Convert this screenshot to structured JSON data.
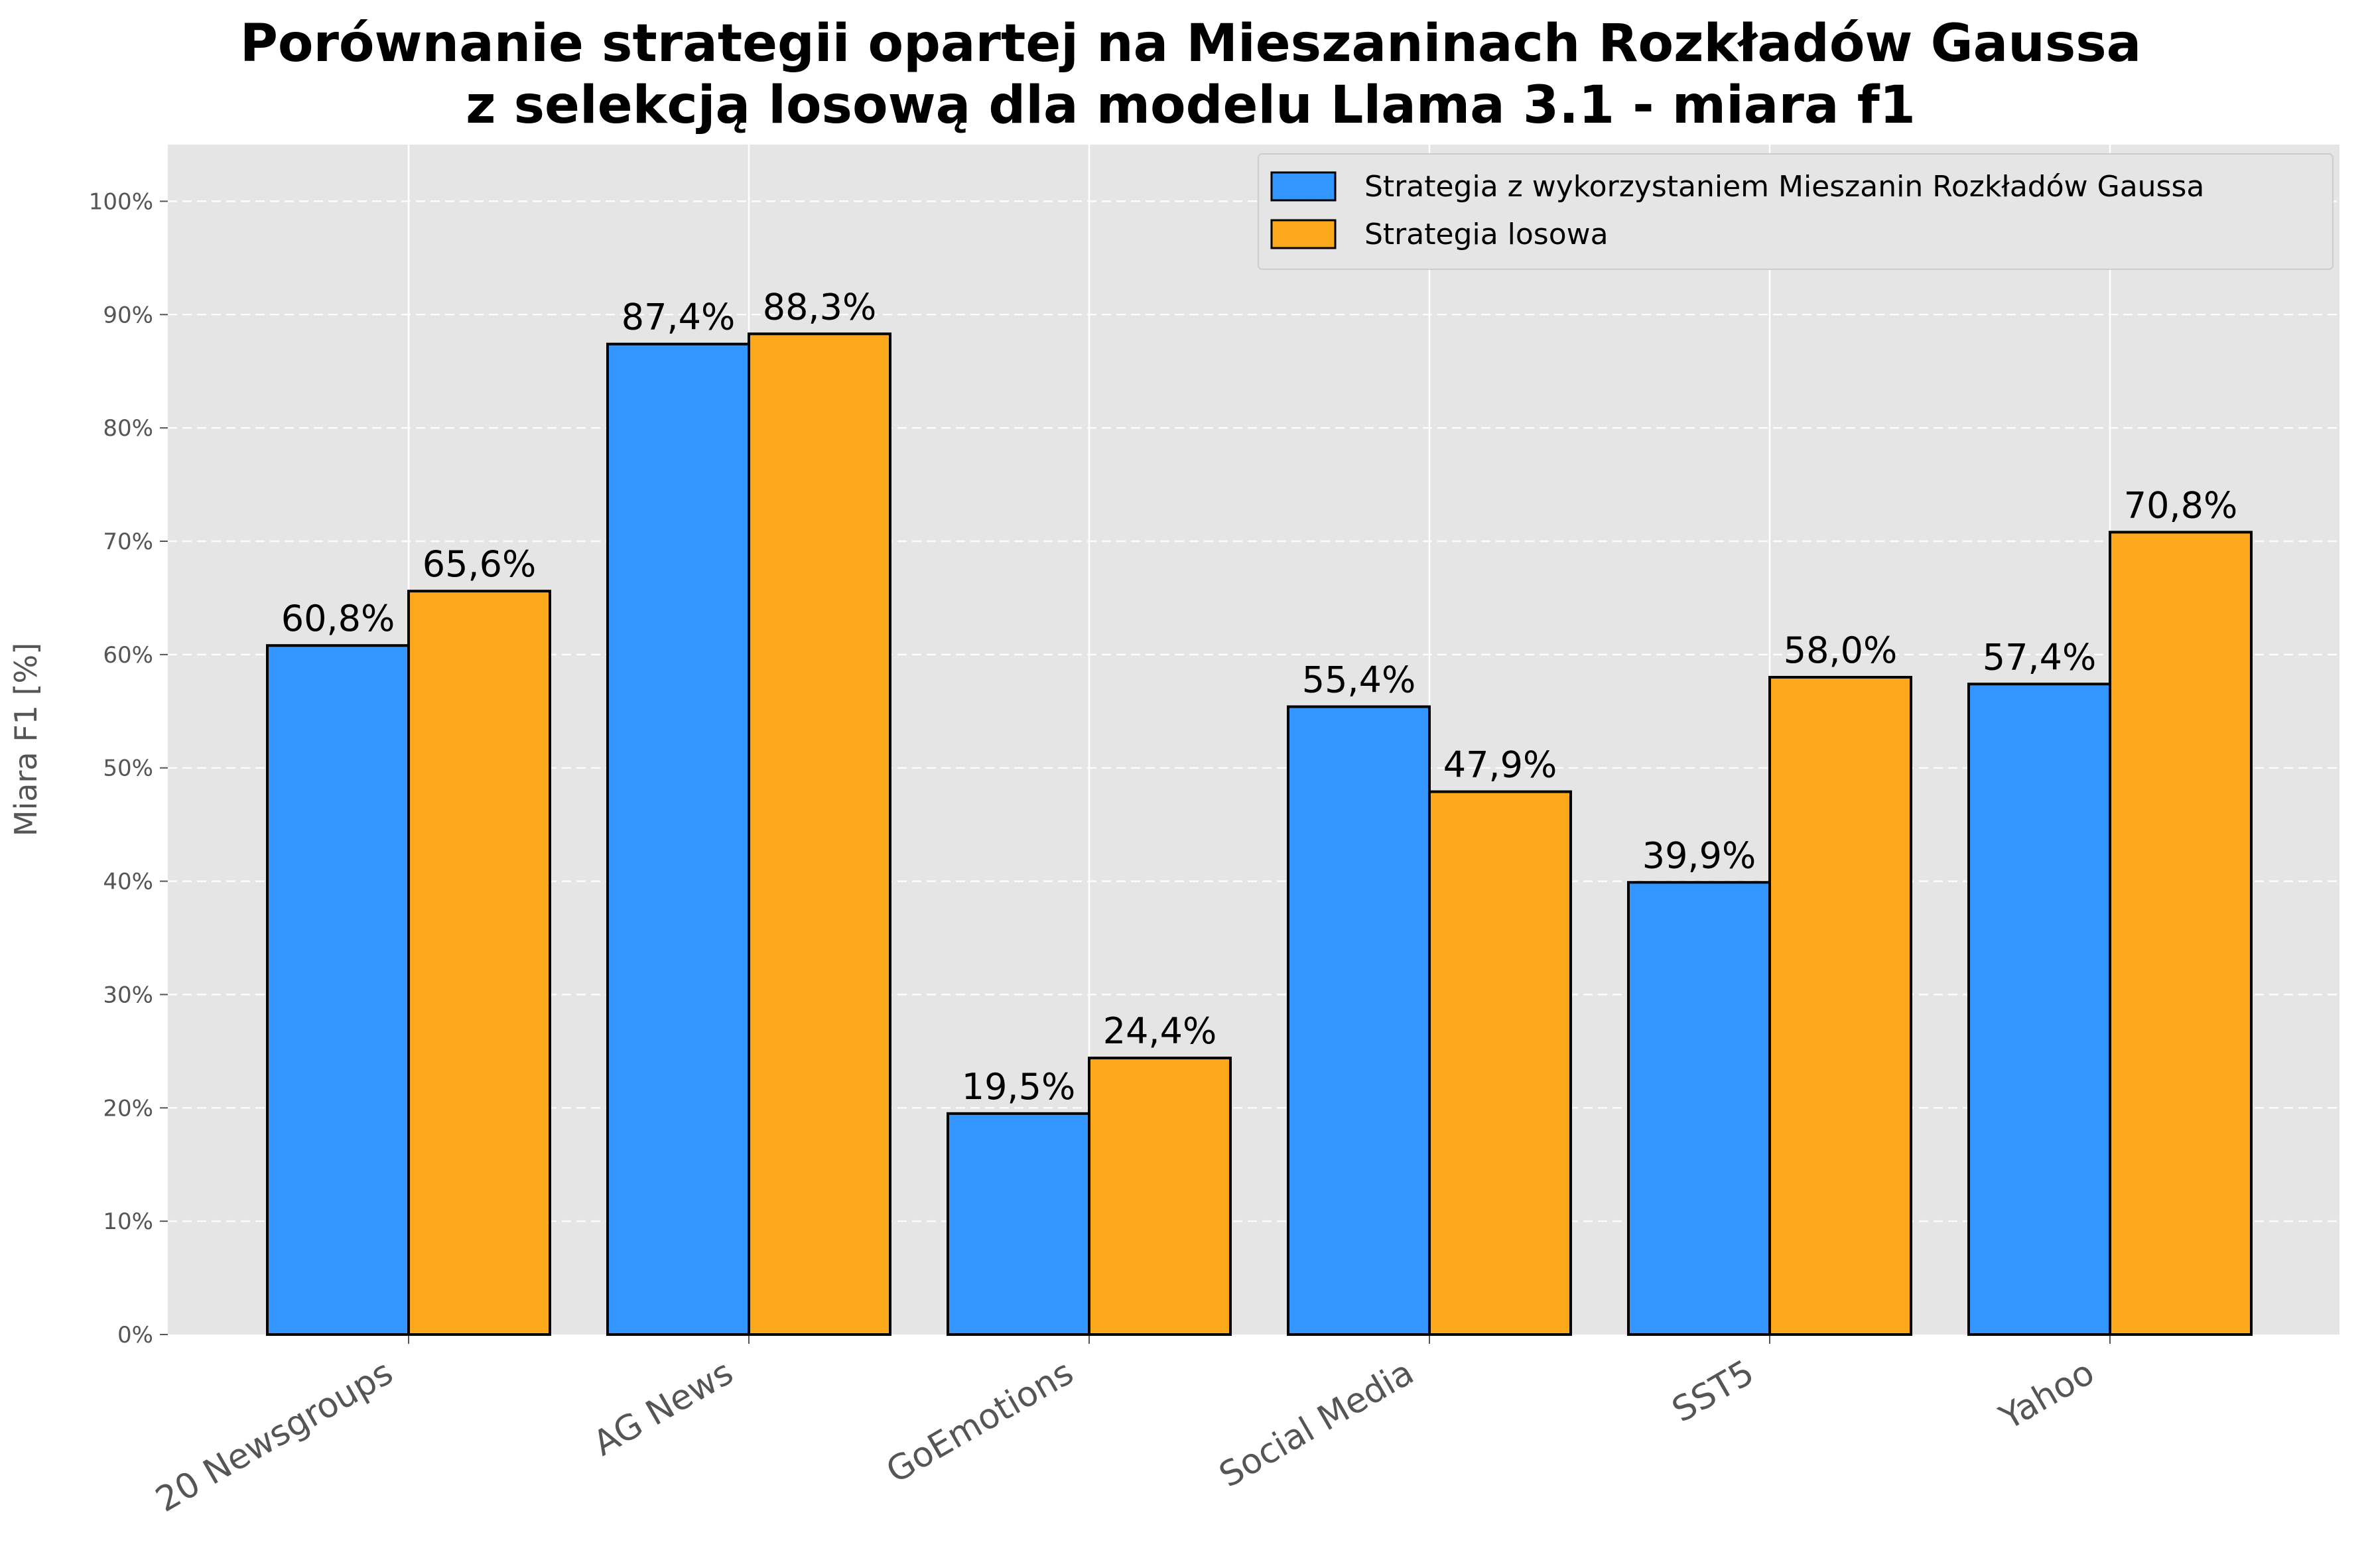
{
  "chart_data": {
    "type": "bar",
    "title": "Porównanie strategii opartej na Mieszaninach Rozkładów Gaussa\nz selekcją losową dla modelu Llama 3.1 - miara f1",
    "title_lines": [
      "Porównanie strategii opartej na Mieszaninach Rozkładów Gaussa",
      "z selekcją losową dla modelu Llama 3.1 - miara f1"
    ],
    "xlabel": "",
    "ylabel": "Miara F1 [%]",
    "ylim": [
      0,
      105
    ],
    "yticks": [
      0,
      10,
      20,
      30,
      40,
      50,
      60,
      70,
      80,
      90,
      100
    ],
    "ytick_labels": [
      "0%",
      "10%",
      "20%",
      "30%",
      "40%",
      "50%",
      "60%",
      "70%",
      "80%",
      "90%",
      "100%"
    ],
    "categories": [
      "20 Newsgroups",
      "AG News",
      "GoEmotions",
      "Social Media",
      "SST5",
      "Yahoo"
    ],
    "series": [
      {
        "name": "Strategia z wykorzystaniem Mieszanin Rozkładów Gaussa",
        "color": "#3395FF",
        "values": [
          60.8,
          87.4,
          19.5,
          55.4,
          39.9,
          57.4
        ],
        "labels": [
          "60,8%",
          "87,4%",
          "19,5%",
          "55,4%",
          "39,9%",
          "57,4%"
        ]
      },
      {
        "name": "Strategia losowa",
        "color": "#FBA91A",
        "values": [
          65.6,
          88.3,
          24.4,
          47.9,
          58.0,
          70.8
        ],
        "labels": [
          "65,6%",
          "88,3%",
          "24,4%",
          "47,9%",
          "58,0%",
          "70,8%"
        ]
      }
    ],
    "grid": true,
    "legend_position": "top-right",
    "background_color": "#E5E5E5"
  }
}
